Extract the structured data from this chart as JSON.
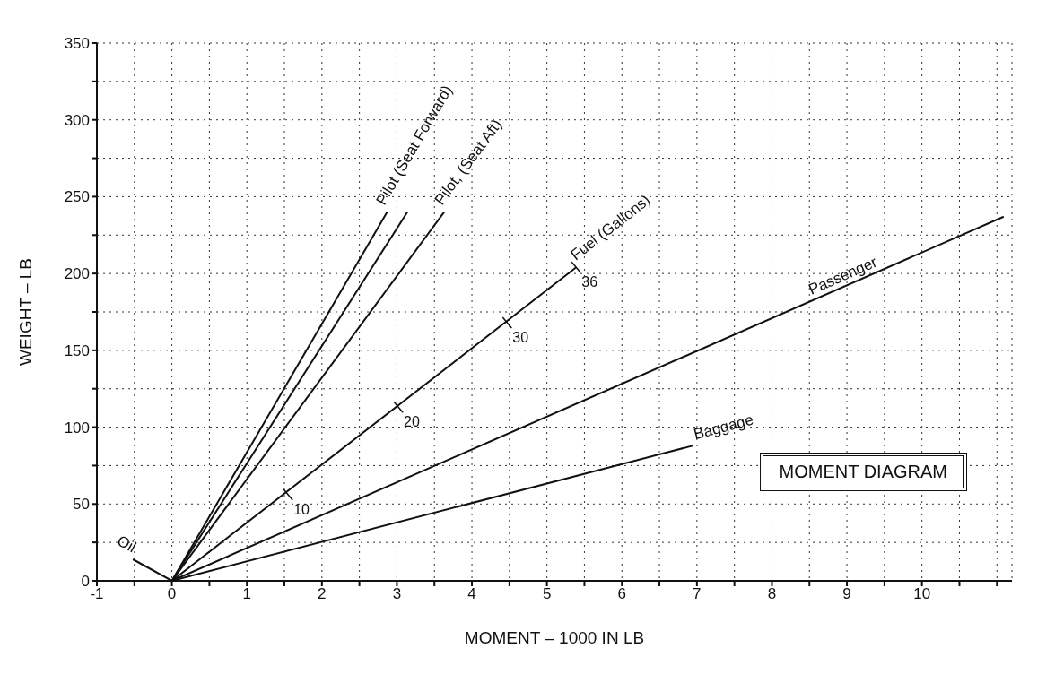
{
  "chart_data": {
    "type": "line",
    "xlabel": "MOMENT – 1000 IN LB",
    "ylabel": "WEIGHT – LB",
    "xlim": [
      -1,
      11.2
    ],
    "ylim": [
      0,
      350
    ],
    "xticks": [
      -1,
      {
        "value": -0.5,
        "label": null
      },
      0,
      {
        "value": 0.5,
        "label": null
      },
      1,
      {
        "value": 1.5,
        "label": null
      },
      2,
      {
        "value": 2.5,
        "label": null
      },
      3,
      {
        "value": 3.5,
        "label": null
      },
      4,
      {
        "value": 4.5,
        "label": null
      },
      5,
      {
        "value": 5.5,
        "label": null
      },
      6,
      {
        "value": 6.5,
        "label": null
      },
      7,
      {
        "value": 7.5,
        "label": null
      },
      8,
      {
        "value": 8.5,
        "label": null
      },
      9,
      {
        "value": 9.5,
        "label": null
      },
      10,
      {
        "value": 10.5,
        "label": null
      },
      {
        "value": 11,
        "label": null
      }
    ],
    "yticks": [
      0,
      {
        "value": 25,
        "label": null
      },
      50,
      {
        "value": 75,
        "label": null
      },
      100,
      {
        "value": 125,
        "label": null
      },
      150,
      {
        "value": 175,
        "label": null
      },
      200,
      {
        "value": 225,
        "label": null
      },
      250,
      {
        "value": 275,
        "label": null
      },
      300,
      {
        "value": 325,
        "label": null
      },
      350
    ],
    "grid": true,
    "line_style": "solid",
    "series": [
      {
        "name": "Pilot (Seat Forward)",
        "color": "#111111",
        "x": [
          0,
          2.87
        ],
        "values": [
          0,
          240
        ]
      },
      {
        "color": "#111111",
        "x": [
          0,
          3.14
        ],
        "values": [
          0,
          240
        ]
      },
      {
        "name": "Pilot, (Seat Aft)",
        "color": "#111111",
        "x": [
          0,
          3.63
        ],
        "values": [
          0,
          240
        ]
      },
      {
        "name": "Fuel (Gallons)",
        "color": "#111111",
        "x": [
          0,
          5.39
        ],
        "values": [
          0,
          204
        ]
      },
      {
        "name": "Passenger",
        "color": "#111111",
        "x": [
          0,
          11.09
        ],
        "values": [
          0,
          237
        ]
      },
      {
        "name": "Baggage",
        "color": "#111111",
        "x": [
          0,
          6.95
        ],
        "values": [
          0,
          88
        ]
      },
      {
        "name": "Oil",
        "color": "#111111",
        "x": [
          0,
          -0.52
        ],
        "values": [
          0,
          14
        ]
      }
    ],
    "annotations": [
      {
        "text": "10",
        "x": 1.55,
        "y": 56
      },
      {
        "text": "20",
        "x": 3.02,
        "y": 113
      },
      {
        "text": "30",
        "x": 4.47,
        "y": 168
      },
      {
        "text": "36",
        "x": 5.39,
        "y": 204
      },
      "MOMENT DIAGRAM"
    ]
  }
}
